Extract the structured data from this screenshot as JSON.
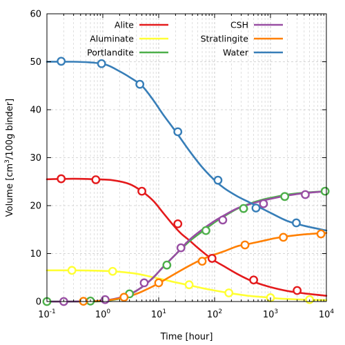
{
  "chart_data": {
    "type": "line",
    "xlabel": "Time [hour]",
    "ylabel_parts": [
      "Volume [cm",
      "3",
      "/100g binder]"
    ],
    "x_scale": "log",
    "xlim": [
      0.1,
      10000
    ],
    "ylim": [
      0,
      60
    ],
    "yticks": [
      0,
      10,
      20,
      30,
      40,
      50,
      60
    ],
    "xticks": [
      {
        "value": 0.1,
        "base": "10",
        "exp": "-1"
      },
      {
        "value": 1,
        "base": "10",
        "exp": "0"
      },
      {
        "value": 10,
        "base": "10",
        "exp": "1"
      },
      {
        "value": 100,
        "base": "10",
        "exp": "2"
      },
      {
        "value": 1000,
        "base": "10",
        "exp": "3"
      },
      {
        "value": 10000,
        "base": "10",
        "exp": "4"
      }
    ],
    "grid": true,
    "legend_position": "top",
    "series": [
      {
        "name": "Alite",
        "color": "#e41a1c",
        "x": [
          0.1,
          0.3,
          0.7,
          1.5,
          3,
          5,
          8,
          12,
          18,
          25,
          35,
          50,
          70,
          100,
          150,
          250,
          400,
          600,
          1000,
          2000,
          4000,
          10000
        ],
        "y": [
          25.5,
          25.6,
          25.5,
          25.3,
          24.5,
          23.0,
          21.0,
          18.5,
          16.0,
          14.2,
          12.8,
          11.2,
          9.8,
          8.5,
          7.3,
          5.8,
          4.6,
          3.8,
          3.0,
          2.2,
          1.7,
          1.2
        ],
        "markers_x": [
          0.18,
          0.75,
          5,
          22,
          90,
          500,
          3000
        ],
        "markers_y": [
          25.6,
          25.4,
          23.0,
          16.2,
          9.0,
          4.5,
          2.3
        ]
      },
      {
        "name": "Aluminate",
        "color": "#ffff33",
        "x": [
          0.1,
          0.3,
          1,
          2,
          4,
          7,
          12,
          20,
          35,
          60,
          100,
          200,
          400,
          800,
          1500,
          3000,
          6000,
          10000
        ],
        "y": [
          6.5,
          6.5,
          6.4,
          6.2,
          5.8,
          5.2,
          4.6,
          4.0,
          3.4,
          2.8,
          2.3,
          1.7,
          1.2,
          0.9,
          0.6,
          0.45,
          0.35,
          0.3
        ],
        "markers_x": [
          0.28,
          1.5,
          35,
          180,
          1000,
          5000
        ],
        "markers_y": [
          6.5,
          6.3,
          3.5,
          1.8,
          0.8,
          0.4
        ]
      },
      {
        "name": "Portlandite",
        "color": "#4daf4a",
        "x": [
          0.1,
          0.5,
          1,
          2,
          3,
          5,
          8,
          12,
          20,
          35,
          60,
          100,
          150,
          250,
          400,
          700,
          1200,
          2000,
          4000,
          10000
        ],
        "y": [
          0,
          0,
          0.1,
          0.6,
          1.4,
          3.0,
          5.0,
          7.2,
          9.8,
          12.5,
          14.6,
          16.5,
          17.8,
          19.3,
          20.3,
          21.2,
          21.8,
          22.3,
          22.7,
          23.0
        ],
        "markers_x": [
          0.1,
          0.6,
          3,
          14,
          70,
          330,
          1800,
          9500
        ],
        "markers_y": [
          0,
          0.1,
          1.6,
          7.6,
          14.8,
          19.4,
          21.9,
          23.0
        ]
      },
      {
        "name": "CSH",
        "color": "#984ea3",
        "x": [
          0.1,
          0.3,
          1,
          2,
          3,
          5,
          8,
          12,
          20,
          35,
          60,
          100,
          150,
          250,
          400,
          700,
          1200,
          2000,
          4000,
          10000
        ],
        "y": [
          0,
          0,
          0.2,
          0.8,
          1.5,
          3.0,
          5.0,
          7.2,
          9.8,
          12.8,
          15.0,
          16.8,
          18.0,
          19.4,
          20.2,
          21.0,
          21.6,
          22.1,
          22.6,
          23.0
        ],
        "markers_x": [
          0.2,
          1.1,
          5.5,
          25,
          140,
          750,
          4200
        ],
        "markers_y": [
          0,
          0.4,
          3.9,
          11.2,
          17.0,
          20.4,
          22.3
        ]
      },
      {
        "name": "Stratlingite",
        "color": "#ff7f00",
        "x": [
          0.4,
          0.8,
          1.5,
          2.5,
          4,
          6,
          10,
          15,
          25,
          40,
          60,
          100,
          150,
          250,
          400,
          700,
          1200,
          2000,
          4000,
          10000
        ],
        "y": [
          0,
          0.1,
          0.4,
          0.9,
          1.6,
          2.5,
          3.8,
          5.0,
          6.5,
          7.8,
          8.8,
          9.8,
          10.5,
          11.5,
          12.0,
          12.6,
          13.2,
          13.6,
          14.0,
          14.3
        ],
        "markers_x": [
          0.45,
          2.4,
          10,
          60,
          350,
          1700,
          8000
        ],
        "markers_y": [
          0.05,
          0.9,
          3.9,
          8.4,
          11.8,
          13.4,
          14.1
        ]
      },
      {
        "name": "Water",
        "color": "#377eb8",
        "x": [
          0.1,
          0.3,
          0.7,
          1.2,
          2,
          3,
          5,
          8,
          12,
          20,
          35,
          60,
          100,
          150,
          250,
          400,
          600,
          1000,
          2000,
          4000,
          10000
        ],
        "y": [
          50.0,
          50.0,
          49.8,
          49.3,
          48.0,
          46.8,
          45.0,
          42.0,
          39.0,
          35.5,
          31.5,
          28.0,
          25.3,
          23.6,
          22.0,
          20.8,
          19.8,
          18.5,
          16.8,
          15.8,
          14.8
        ],
        "markers_x": [
          0.18,
          0.95,
          4.6,
          22,
          115,
          550,
          2900
        ],
        "markers_y": [
          50.1,
          49.6,
          45.3,
          35.4,
          25.3,
          19.5,
          16.4
        ]
      }
    ]
  }
}
